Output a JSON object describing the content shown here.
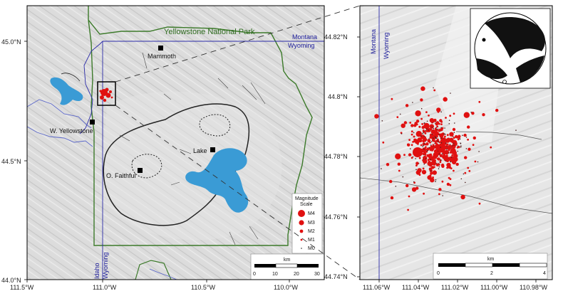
{
  "colors": {
    "water": "#3a9bd5",
    "park_boundary": "#3c7a2a",
    "state_line": "#2a2aa8",
    "river": "#5a66c8",
    "event": "#e01010",
    "caldera": "#222222"
  },
  "left_map": {
    "park_label": "Yellowstone National Park",
    "state_labels": {
      "montana": "Montana",
      "wyoming": "Wyoming",
      "idaho": "Idaho",
      "wyoming_lower": "Wyoming"
    },
    "places": {
      "mammoth": "Mammoth",
      "west_yellowstone": "W. Yellowstone",
      "lake": "Lake",
      "old_faithful": "O. Faithful"
    },
    "lat_ticks": [
      "45.0°N",
      "44.5°N",
      "44.0°N"
    ],
    "lon_ticks": [
      "111.5°W",
      "111.0°W",
      "110.5°W",
      "110.0°W"
    ],
    "legend": {
      "title_line1": "Magnitude",
      "title_line2": "Scale",
      "items": [
        "M4",
        "M3",
        "M2",
        "M1",
        "M0"
      ]
    },
    "scalebar": {
      "unit": "km",
      "ticks": [
        "0",
        "10",
        "20",
        "30"
      ]
    }
  },
  "right_map": {
    "state_labels": {
      "montana": "Montana",
      "wyoming": "Wyoming"
    },
    "lat_ticks": [
      "44.82°N",
      "44.8°N",
      "44.78°N",
      "44.76°N",
      "44.74°N"
    ],
    "lon_ticks": [
      "111.06°W",
      "111.04°W",
      "111.02°W",
      "111.00°W",
      "110.98°W"
    ],
    "scalebar": {
      "unit": "km",
      "ticks": [
        "0",
        "2",
        "4"
      ]
    }
  }
}
